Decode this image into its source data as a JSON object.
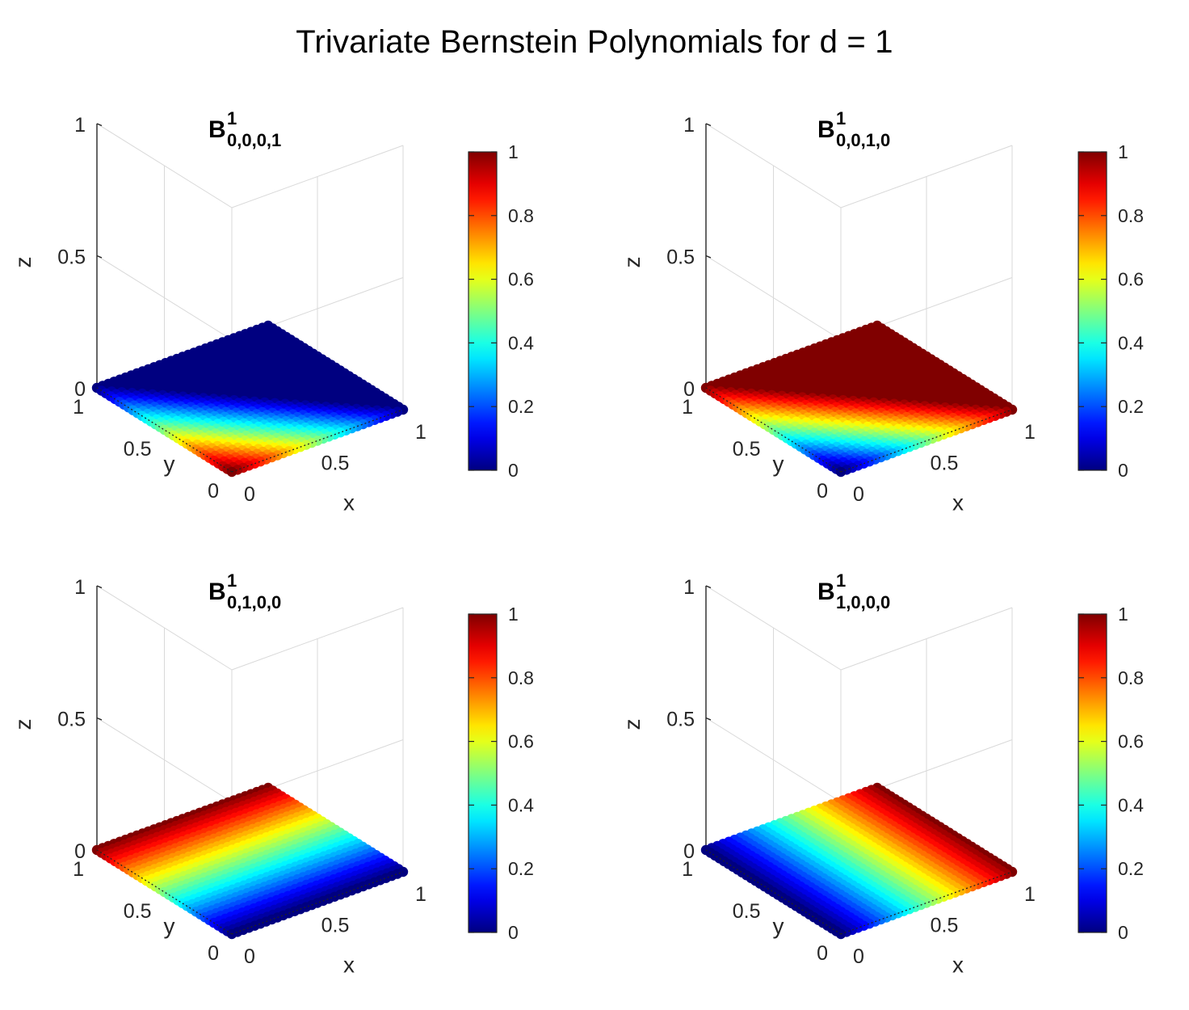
{
  "figure_title": "Trivariate Bernstein Polynomials for d = 1",
  "colors": {
    "colormap": "jet",
    "axis": "#262626",
    "grid": "#d9d9d9"
  },
  "chart_data": [
    {
      "type": "scatter3d",
      "title_base": "B",
      "title_superscript": "1",
      "title_subscript": "0,0,0,1",
      "color_expression": "1 - x - y",
      "xlabel": "x",
      "ylabel": "y",
      "zlabel": "z",
      "xlim": [
        0,
        1
      ],
      "ylim": [
        0,
        1
      ],
      "zlim": [
        0,
        1
      ],
      "x_ticks": [
        "0",
        "0.5",
        "1"
      ],
      "y_ticks": [
        "0",
        "0.5",
        "1"
      ],
      "z_ticks": [
        "0",
        "0.5",
        "1"
      ],
      "colorbar": {
        "range": [
          0,
          1
        ],
        "ticks": [
          "0",
          "0.2",
          "0.4",
          "0.6",
          "0.8",
          "1"
        ]
      }
    },
    {
      "type": "scatter3d",
      "title_base": "B",
      "title_superscript": "1",
      "title_subscript": "0,0,1,0",
      "color_expression": "x + y",
      "xlabel": "x",
      "ylabel": "y",
      "zlabel": "z",
      "xlim": [
        0,
        1
      ],
      "ylim": [
        0,
        1
      ],
      "zlim": [
        0,
        1
      ],
      "x_ticks": [
        "0",
        "0.5",
        "1"
      ],
      "y_ticks": [
        "0",
        "0.5",
        "1"
      ],
      "z_ticks": [
        "0",
        "0.5",
        "1"
      ],
      "colorbar": {
        "range": [
          0,
          1
        ],
        "ticks": [
          "0",
          "0.2",
          "0.4",
          "0.6",
          "0.8",
          "1"
        ]
      }
    },
    {
      "type": "scatter3d",
      "title_base": "B",
      "title_superscript": "1",
      "title_subscript": "0,1,0,0",
      "color_expression": "y",
      "xlabel": "x",
      "ylabel": "y",
      "zlabel": "z",
      "xlim": [
        0,
        1
      ],
      "ylim": [
        0,
        1
      ],
      "zlim": [
        0,
        1
      ],
      "x_ticks": [
        "0",
        "0.5",
        "1"
      ],
      "y_ticks": [
        "0",
        "0.5",
        "1"
      ],
      "z_ticks": [
        "0",
        "0.5",
        "1"
      ],
      "colorbar": {
        "range": [
          0,
          1
        ],
        "ticks": [
          "0",
          "0.2",
          "0.4",
          "0.6",
          "0.8",
          "1"
        ]
      }
    },
    {
      "type": "scatter3d",
      "title_base": "B",
      "title_superscript": "1",
      "title_subscript": "1,0,0,0",
      "color_expression": "x",
      "xlabel": "x",
      "ylabel": "y",
      "zlabel": "z",
      "xlim": [
        0,
        1
      ],
      "ylim": [
        0,
        1
      ],
      "zlim": [
        0,
        1
      ],
      "x_ticks": [
        "0",
        "0.5",
        "1"
      ],
      "y_ticks": [
        "0",
        "0.5",
        "1"
      ],
      "z_ticks": [
        "0",
        "0.5",
        "1"
      ],
      "colorbar": {
        "range": [
          0,
          1
        ],
        "ticks": [
          "0",
          "0.2",
          "0.4",
          "0.6",
          "0.8",
          "1"
        ]
      }
    }
  ]
}
